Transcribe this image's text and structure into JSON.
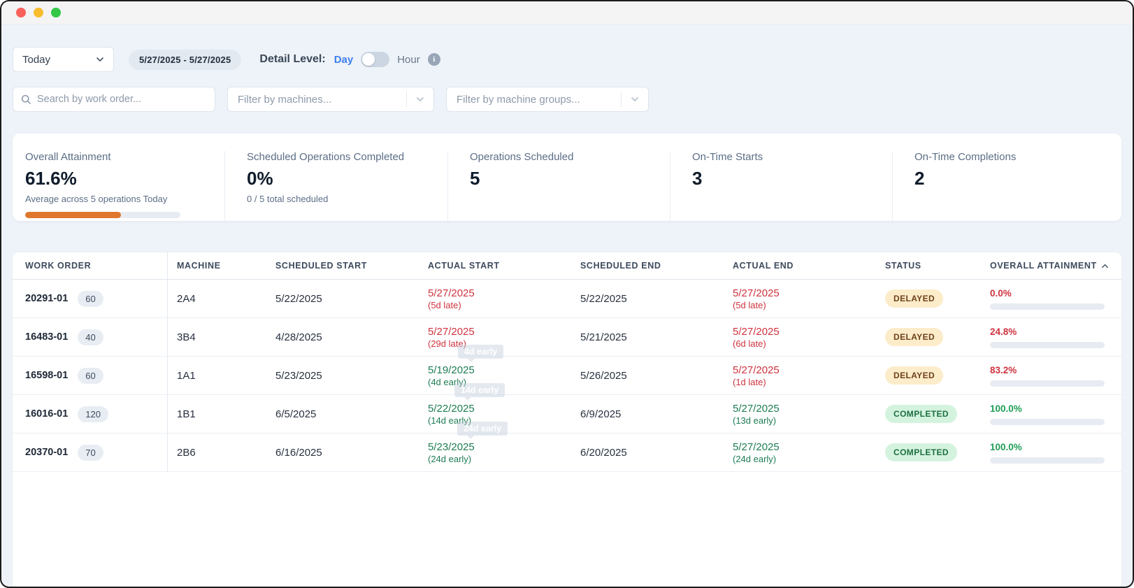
{
  "toolbar": {
    "range_select": {
      "value": "Today"
    },
    "date_range": "5/27/2025 - 5/27/2025",
    "detail_level": {
      "label": "Detail Level:",
      "option_day": "Day",
      "option_hour": "Hour",
      "selected": "Day"
    }
  },
  "filters": {
    "search_placeholder": "Search by work order...",
    "machines_placeholder": "Filter by machines...",
    "machine_groups_placeholder": "Filter by machine groups..."
  },
  "kpis": [
    {
      "label": "Overall Attainment",
      "value": "61.6%",
      "sub": "Average across 5 operations Today",
      "progress_pct": 61.6,
      "progress_color": "#e0772e"
    },
    {
      "label": "Scheduled Operations Completed",
      "value": "0%",
      "sub": "0 / 5 total scheduled"
    },
    {
      "label": "Operations Scheduled",
      "value": "5"
    },
    {
      "label": "On-Time Starts",
      "value": "3"
    },
    {
      "label": "On-Time Completions",
      "value": "2"
    }
  ],
  "table": {
    "columns": [
      "WORK ORDER",
      "MACHINE",
      "SCHEDULED START",
      "ACTUAL START",
      "SCHEDULED END",
      "ACTUAL END",
      "STATUS",
      "OVERALL ATTAINMENT"
    ],
    "sort": {
      "column": "OVERALL ATTAINMENT",
      "direction": "asc"
    },
    "rows": [
      {
        "work_order": "20291-01",
        "qty": "60",
        "machine": "2A4",
        "scheduled_start": "5/22/2025",
        "actual_start": {
          "date": "5/27/2025",
          "delta": "(5d late)",
          "type": "late"
        },
        "scheduled_end": "5/22/2025",
        "actual_end": {
          "date": "5/27/2025",
          "delta": "(5d late)",
          "type": "late"
        },
        "status": "DELAYED",
        "status_type": "delayed",
        "attainment": {
          "label": "0.0%",
          "pct": 0,
          "type": "late"
        }
      },
      {
        "work_order": "16483-01",
        "qty": "40",
        "machine": "3B4",
        "scheduled_start": "4/28/2025",
        "actual_start": {
          "date": "5/27/2025",
          "delta": "(29d late)",
          "type": "late"
        },
        "scheduled_end": "5/21/2025",
        "actual_end": {
          "date": "5/27/2025",
          "delta": "(6d late)",
          "type": "late"
        },
        "status": "DELAYED",
        "status_type": "delayed",
        "attainment": {
          "label": "24.8%",
          "pct": 24.8,
          "type": "late"
        }
      },
      {
        "work_order": "16598-01",
        "qty": "60",
        "machine": "1A1",
        "scheduled_start": "5/23/2025",
        "actual_start": {
          "date": "5/19/2025",
          "delta": "(4d early)",
          "type": "early"
        },
        "scheduled_end": "5/26/2025",
        "actual_end": {
          "date": "5/27/2025",
          "delta": "(1d late)",
          "type": "late"
        },
        "status": "DELAYED",
        "status_type": "delayed",
        "attainment": {
          "label": "83.2%",
          "pct": 83.2,
          "type": "late"
        }
      },
      {
        "work_order": "16016-01",
        "qty": "120",
        "machine": "1B1",
        "scheduled_start": "6/5/2025",
        "actual_start": {
          "date": "5/22/2025",
          "delta": "(14d early)",
          "type": "early"
        },
        "scheduled_end": "6/9/2025",
        "actual_end": {
          "date": "5/27/2025",
          "delta": "(13d early)",
          "type": "early"
        },
        "status": "COMPLETED",
        "status_type": "completed",
        "attainment": {
          "label": "100.0%",
          "pct": 100,
          "type": "early"
        }
      },
      {
        "work_order": "20370-01",
        "qty": "70",
        "machine": "2B6",
        "scheduled_start": "6/16/2025",
        "actual_start": {
          "date": "5/23/2025",
          "delta": "(24d early)",
          "type": "early"
        },
        "scheduled_end": "6/20/2025",
        "actual_end": {
          "date": "5/27/2025",
          "delta": "(24d early)",
          "type": "early"
        },
        "status": "COMPLETED",
        "status_type": "completed",
        "attainment": {
          "label": "100.0%",
          "pct": 100,
          "type": "early"
        }
      }
    ]
  },
  "ghost_tooltips": [
    "4d early",
    "14d early",
    "24d early"
  ],
  "colors": {
    "accent_blue": "#3e7ef0",
    "late_red": "#ce333e",
    "early_green": "#1d7d53",
    "bar_red": "#e23c42",
    "bar_green": "#2f9e5b",
    "bar_orange": "#e0772e",
    "delayed_badge_bg": "#fcecca",
    "completed_badge_bg": "#d4f3df",
    "page_bg": "#eef3f9"
  }
}
